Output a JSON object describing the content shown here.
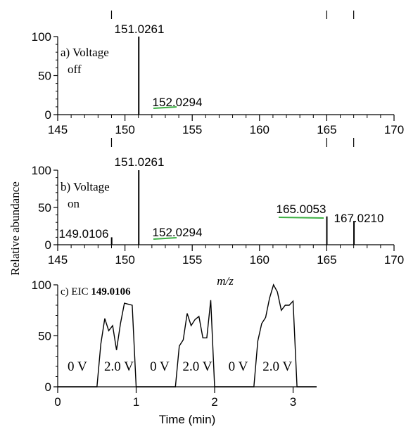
{
  "ylabel": "Relative abundance",
  "chart_data": [
    {
      "type": "line",
      "panel_label": "a) Voltage\noff",
      "xlabel": "",
      "xlim": [
        145,
        170
      ],
      "ylim": [
        0,
        100
      ],
      "xticks": [
        145,
        150,
        155,
        160,
        165,
        170
      ],
      "yticks": [
        0,
        50,
        100
      ],
      "top_markers": [
        149,
        165,
        167
      ],
      "peaks": [
        {
          "x": 151.0261,
          "y": 100,
          "label": "151.0261"
        },
        {
          "x": 152.0294,
          "y": 0.5,
          "label": "152.0294"
        }
      ]
    },
    {
      "type": "line",
      "panel_label": "b) Voltage\non",
      "xlabel": "m/z",
      "xlim": [
        145,
        170
      ],
      "ylim": [
        0,
        100
      ],
      "xticks": [
        145,
        150,
        155,
        160,
        165,
        170
      ],
      "yticks": [
        0,
        50,
        100
      ],
      "top_markers": [
        149,
        165,
        167
      ],
      "peaks": [
        {
          "x": 149.0106,
          "y": 10,
          "label": "149.0106"
        },
        {
          "x": 151.0261,
          "y": 100,
          "label": "151.0261"
        },
        {
          "x": 152.0294,
          "y": 0.5,
          "label": "152.0294"
        },
        {
          "x": 165.0053,
          "y": 38,
          "label": "165.0053"
        },
        {
          "x": 167.021,
          "y": 32,
          "label": "167.0210"
        }
      ]
    },
    {
      "type": "line",
      "panel_label": "c) EIC",
      "panel_label_bold": "149.0106",
      "xlabel": "Time (min)",
      "xlim": [
        0,
        3.3
      ],
      "ylim": [
        0,
        100
      ],
      "xticks": [
        0,
        1,
        2,
        3
      ],
      "yticks": [
        0,
        50,
        100
      ],
      "series": [
        {
          "x": [
            0,
            0.5,
            0.55,
            0.6,
            0.65,
            0.7,
            0.75,
            0.8,
            0.85,
            0.9,
            0.95,
            1.0,
            1.5,
            1.55,
            1.6,
            1.65,
            1.7,
            1.75,
            1.8,
            1.85,
            1.9,
            1.95,
            2.0,
            2.05,
            2.5,
            2.55,
            2.6,
            2.65,
            2.7,
            2.75,
            2.8,
            2.85,
            2.9,
            2.95,
            3.0,
            3.05,
            3.1,
            3.3
          ],
          "y": [
            0,
            0,
            42,
            67,
            55,
            60,
            36,
            62,
            82,
            81,
            80,
            0,
            0,
            40,
            46,
            72,
            60,
            66,
            69,
            48,
            48,
            85,
            0,
            0,
            0,
            45,
            62,
            68,
            87,
            100,
            93,
            75,
            80,
            80,
            84,
            0,
            0,
            0
          ]
        }
      ],
      "region_labels": [
        "0 V",
        "2.0 V",
        "0 V",
        "2.0 V",
        "0 V",
        "2.0 V"
      ],
      "region_centers": [
        0.25,
        0.78,
        1.3,
        1.78,
        2.3,
        2.8
      ]
    }
  ]
}
